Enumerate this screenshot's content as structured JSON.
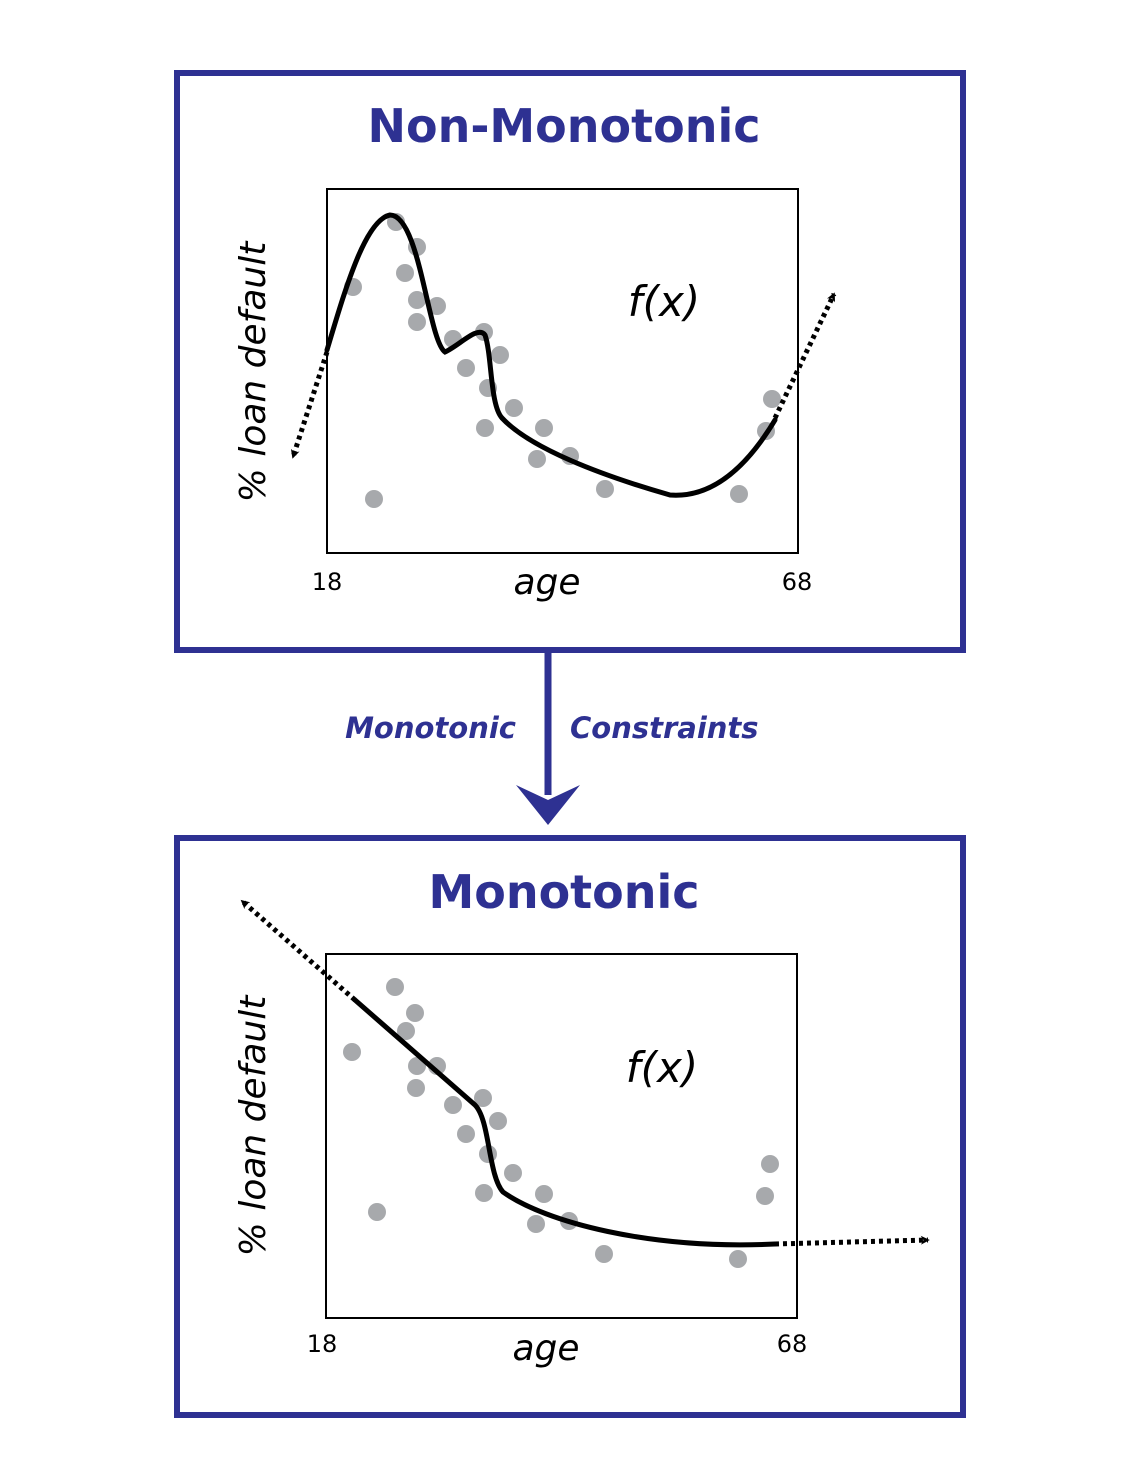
{
  "colors": {
    "accent": "#2e3192",
    "point": "#a7a9ac",
    "curve": "#000000"
  },
  "transition": {
    "label_left": "Monotonic",
    "label_right": "Constraints"
  },
  "panels": [
    {
      "title": "Non-Monotonic",
      "ylabel": "% loan default",
      "xlabel": "age",
      "x_min_label": "18",
      "x_max_label": "68",
      "function_label": "f(x)"
    },
    {
      "title": "Monotonic",
      "ylabel": "% loan default",
      "xlabel": "age",
      "x_min_label": "18",
      "x_max_label": "68",
      "function_label": "f(x)"
    }
  ]
}
